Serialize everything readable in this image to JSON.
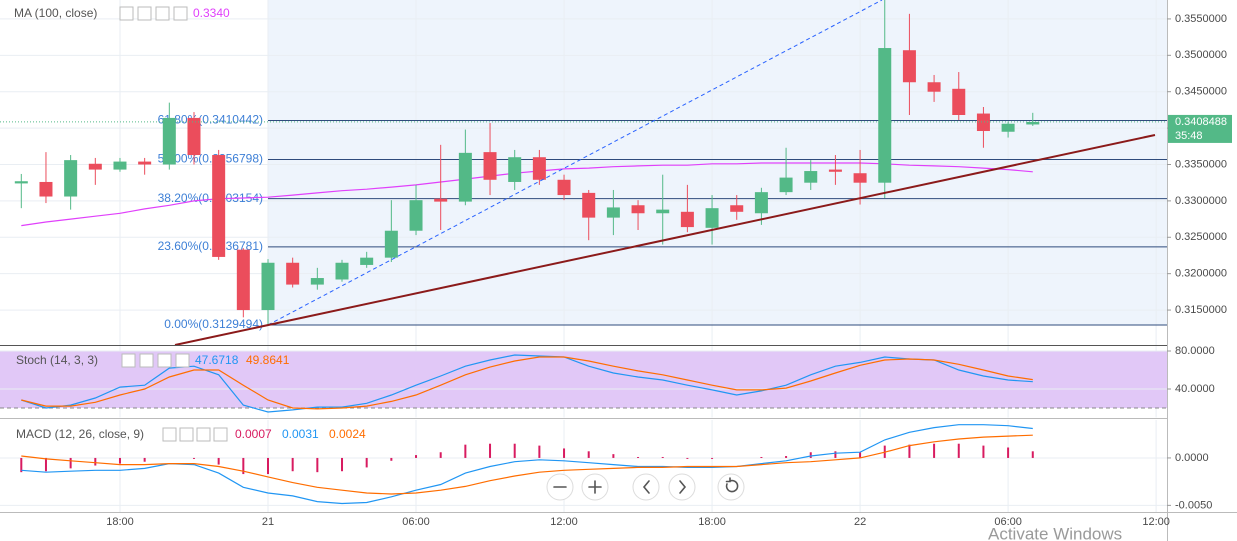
{
  "chart_data": [
    {
      "type": "candlestick",
      "categories": [
        null,
        null,
        null,
        null,
        "18:00",
        null,
        null,
        null,
        null,
        null,
        "21",
        null,
        null,
        null,
        null,
        null,
        "06:00",
        null,
        null,
        null,
        null,
        null,
        "12:00",
        null,
        null,
        null,
        null,
        null,
        "18:00",
        null,
        null,
        null,
        null,
        null,
        "22",
        null,
        null,
        null,
        null,
        null,
        "06:00",
        null,
        null,
        null,
        null,
        null,
        "12:00"
      ],
      "open": [
        0.3324,
        0.3326,
        0.3306,
        0.3351,
        0.3343,
        0.3354,
        0.335,
        0.3414,
        0.3363,
        0.3233,
        0.315,
        0.3215,
        0.3185,
        0.3192,
        0.3212,
        0.3222,
        0.3259,
        0.3303,
        0.3299,
        0.3367,
        0.3326,
        0.336,
        0.3329,
        0.3311,
        0.3277,
        0.3294,
        0.3283,
        0.3285,
        0.3263,
        0.3294,
        0.3283,
        0.3312,
        0.3325,
        0.3343,
        0.3338,
        0.3325,
        0.3507,
        0.3463,
        0.3454,
        0.342,
        0.3395,
        0.3405,
        null,
        null,
        null,
        null,
        null
      ],
      "high": [
        0.3337,
        0.3367,
        0.3363,
        0.3359,
        0.3359,
        0.3359,
        0.3435,
        0.3422,
        0.337,
        0.3235,
        0.322,
        0.3222,
        0.3208,
        0.3219,
        0.323,
        0.3301,
        0.3322,
        0.3377,
        0.3398,
        0.3407,
        0.337,
        0.337,
        0.3336,
        0.3315,
        0.3315,
        0.3301,
        0.3336,
        0.3322,
        0.3308,
        0.3308,
        0.3318,
        0.3373,
        0.3356,
        0.3363,
        0.337,
        0.358,
        0.3557,
        0.3473,
        0.3477,
        0.3429,
        0.3409,
        0.3421,
        null,
        null,
        null,
        null,
        null
      ],
      "low": [
        0.329,
        0.3297,
        0.3288,
        0.3322,
        0.334,
        0.3336,
        0.3343,
        0.335,
        0.3219,
        0.314,
        0.3129,
        0.3181,
        0.3178,
        0.3189,
        0.3208,
        0.3216,
        0.3253,
        0.326,
        0.3294,
        0.3308,
        0.3315,
        0.3322,
        0.3301,
        0.3246,
        0.3253,
        0.326,
        0.324,
        0.3257,
        0.324,
        0.3274,
        0.3267,
        0.3308,
        0.3315,
        0.3322,
        0.3295,
        0.3304,
        0.3418,
        0.3436,
        0.3411,
        0.3373,
        0.3387,
        0.3403,
        null,
        null,
        null,
        null,
        null
      ],
      "close": [
        0.3327,
        0.3306,
        0.3356,
        0.3343,
        0.3354,
        0.335,
        0.3414,
        0.3363,
        0.3223,
        0.315,
        0.3215,
        0.3185,
        0.3194,
        0.3215,
        0.3222,
        0.3259,
        0.3301,
        0.3299,
        0.3366,
        0.3329,
        0.336,
        0.3329,
        0.3308,
        0.3277,
        0.3291,
        0.3283,
        0.3288,
        0.3264,
        0.329,
        0.3285,
        0.3312,
        0.3332,
        0.3341,
        0.334,
        0.3325,
        0.351,
        0.3463,
        0.345,
        0.3418,
        0.3396,
        0.3406,
        0.3408488,
        null,
        null,
        null,
        null,
        null
      ],
      "up_color": "#53b987",
      "down_color": "#eb4d5c",
      "series": [
        {
          "name": "MA (100, close)",
          "color": "#e040fb",
          "legend_value": "0.3340",
          "values": [
            0.3266,
            0.3271,
            0.3275,
            0.3279,
            0.3283,
            0.3289,
            0.3294,
            0.33,
            0.3303,
            0.3304,
            0.3305,
            0.3308,
            0.3311,
            0.3314,
            0.3316,
            0.3319,
            0.3322,
            0.3326,
            0.333,
            0.3334,
            0.3338,
            0.3341,
            0.3344,
            0.3345,
            0.3347,
            0.3348,
            0.3349,
            0.3349,
            0.3351,
            0.3351,
            0.3352,
            0.3352,
            0.3352,
            0.3352,
            0.3352,
            0.3351,
            0.3349,
            0.3348,
            0.3347,
            0.3345,
            0.3343,
            0.334,
            null,
            null,
            null,
            null,
            null
          ]
        }
      ],
      "levels": [
        {
          "label": "61.80%(0.3410442)",
          "value": 0.3410442
        },
        {
          "label": "50.00%(0.3356798)",
          "value": 0.3356798
        },
        {
          "label": "38.20%(0.3303154)",
          "value": 0.3303154
        },
        {
          "label": "23.60%(0.3236781)",
          "value": 0.3236781
        },
        {
          "label": "0.00%(0.3129494)",
          "value": 0.3129494
        }
      ],
      "level_color": "#2f4b7c",
      "level_label_color": "#3d7fd6",
      "countdown": "35:48",
      "ylim": [
        0.3102,
        0.3576
      ],
      "yticks": [
        {
          "value": 0.315,
          "label": "0.3150000"
        },
        {
          "value": 0.32,
          "label": "0.3200000"
        },
        {
          "value": 0.325,
          "label": "0.3250000"
        },
        {
          "value": 0.33,
          "label": "0.3300000"
        },
        {
          "value": 0.335,
          "label": "0.3350000"
        },
        {
          "value": 0.34,
          "label": "0.3400000"
        },
        {
          "value": 0.345,
          "label": "0.3450000"
        },
        {
          "value": 0.35,
          "label": "0.3500000"
        },
        {
          "value": 0.355,
          "label": "0.3550000"
        }
      ],
      "grid": true
    },
    {
      "type": "line",
      "title": "Stoch (14, 3, 3)",
      "series": [
        {
          "color": "#2196f3",
          "values": [
            28.4,
            20,
            23,
            30.5,
            42,
            44,
            62,
            64,
            55,
            23,
            15.8,
            18,
            21,
            21,
            25,
            33.7,
            44,
            53.7,
            64,
            70.5,
            75.8,
            74.7,
            73.7,
            64,
            56.8,
            52.6,
            49.5,
            44,
            39,
            33.7,
            38,
            44,
            55,
            64,
            68,
            73.7,
            71.6,
            70.5,
            60,
            53.7,
            49.5,
            47.6718,
            null,
            null,
            null,
            null,
            null
          ]
        },
        {
          "color": "#ff6d00",
          "values": [
            28.4,
            22,
            22,
            26,
            33.7,
            40,
            52.6,
            60,
            60,
            44,
            28.4,
            20,
            19,
            20,
            22,
            27,
            33.7,
            44,
            55,
            63,
            69.5,
            73.7,
            73.7,
            69.5,
            64,
            59,
            55,
            49.5,
            44,
            39,
            39,
            41,
            48.4,
            56.8,
            65,
            70.5,
            71.6,
            70.5,
            66,
            60,
            53.7,
            49.8641,
            null,
            null,
            null,
            null,
            null
          ]
        }
      ],
      "band": [
        20,
        80
      ],
      "band_color": "#e1c8f7",
      "ylim": [
        10,
        85
      ],
      "yticks": [
        {
          "value": 40,
          "label": "40.0000"
        },
        {
          "value": 80,
          "label": "80.0000"
        }
      ]
    },
    {
      "type": "macd",
      "title": "MACD (12, 26, close, 9)",
      "series": [
        {
          "kind": "bar",
          "color": "#d81b60",
          "values": [
            -0.0015,
            -0.0014,
            -0.0011,
            -0.0008,
            -0.0006,
            -0.0004,
            0,
            -0.0001,
            -0.0007,
            -0.0017,
            -0.0017,
            -0.0014,
            -0.0015,
            -0.0014,
            -0.001,
            -0.0003,
            0.0003,
            0.0006,
            0.0014,
            0.0015,
            0.0015,
            0.0013,
            0.001,
            0.0007,
            0.0004,
            0.0001,
            0.0001,
            -0.0001,
            -0.0001,
            0,
            0.0001,
            0.0002,
            0.0006,
            0.0007,
            0.0006,
            0.0013,
            0.0014,
            0.0015,
            0.0015,
            0.0013,
            0.0011,
            0.0007,
            null,
            null,
            null,
            null,
            null
          ]
        },
        {
          "kind": "line",
          "color": "#2196f3",
          "values": [
            -0.0013,
            -0.0015,
            -0.0014,
            -0.0013,
            -0.0013,
            -0.0011,
            -0.0006,
            -0.0007,
            -0.0016,
            -0.0031,
            -0.0037,
            -0.004,
            -0.0046,
            -0.0048,
            -0.0047,
            -0.0041,
            -0.0034,
            -0.0028,
            -0.0016,
            -0.0009,
            -0.0004,
            -0.0002,
            -0.0003,
            -0.0005,
            -0.0007,
            -0.0009,
            -0.0009,
            -0.001,
            -0.001,
            -0.0009,
            -0.0006,
            -0.0003,
            0.0002,
            0.0005,
            0.0006,
            0.0019,
            0.0027,
            0.0032,
            0.0035,
            0.0035,
            0.0034,
            0.0031,
            null,
            null,
            null,
            null,
            null
          ]
        },
        {
          "kind": "line",
          "color": "#ff6d00",
          "values": [
            0.0002,
            -0.0001,
            -0.0003,
            -0.0005,
            -0.0007,
            -0.0007,
            -0.0006,
            -0.0006,
            -0.0009,
            -0.0014,
            -0.002,
            -0.0026,
            -0.0031,
            -0.0034,
            -0.0037,
            -0.0038,
            -0.0037,
            -0.0034,
            -0.003,
            -0.0024,
            -0.0019,
            -0.0015,
            -0.0013,
            -0.0012,
            -0.0011,
            -0.001,
            -0.001,
            -0.0009,
            -0.0009,
            -0.0009,
            -0.0007,
            -0.0005,
            -0.0004,
            -0.0002,
            0,
            0.0006,
            0.0013,
            0.0017,
            0.002,
            0.0022,
            0.0023,
            0.0024,
            null,
            null,
            null,
            null,
            null
          ]
        }
      ],
      "ylim": [
        -0.0057,
        0.004
      ],
      "yticks": [
        {
          "value": -0.005,
          "label": "-0.0050"
        },
        {
          "value": 0,
          "label": "0.0000"
        }
      ]
    }
  ],
  "watermark": "Activate Windows"
}
